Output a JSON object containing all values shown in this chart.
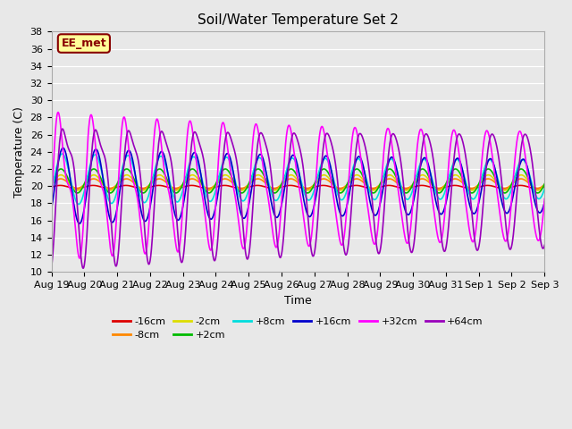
{
  "title": "Soil/Water Temperature Set 2",
  "xlabel": "Time",
  "ylabel": "Temperature (C)",
  "ylim": [
    10,
    38
  ],
  "xtick_labels": [
    "Aug 19",
    "Aug 20",
    "Aug 21",
    "Aug 22",
    "Aug 23",
    "Aug 24",
    "Aug 25",
    "Aug 26",
    "Aug 27",
    "Aug 28",
    "Aug 29",
    "Aug 30",
    "Aug 31",
    "Sep 1",
    "Sep 2",
    "Sep 3"
  ],
  "fig_bg_color": "#e8e8e8",
  "plot_bg_color": "#e8e8e8",
  "series": [
    {
      "label": "-16cm",
      "color": "#dd0000"
    },
    {
      "label": "-8cm",
      "color": "#ff8800"
    },
    {
      "label": "-2cm",
      "color": "#dddd00"
    },
    {
      "label": "+2cm",
      "color": "#00bb00"
    },
    {
      "label": "+8cm",
      "color": "#00dddd"
    },
    {
      "label": "+16cm",
      "color": "#0000cc"
    },
    {
      "label": "+32cm",
      "color": "#ff00ff"
    },
    {
      "label": "+64cm",
      "color": "#9900bb"
    }
  ],
  "annotation_text": "EE_met",
  "annotation_facecolor": "#ffff99",
  "annotation_edgecolor": "#880000"
}
